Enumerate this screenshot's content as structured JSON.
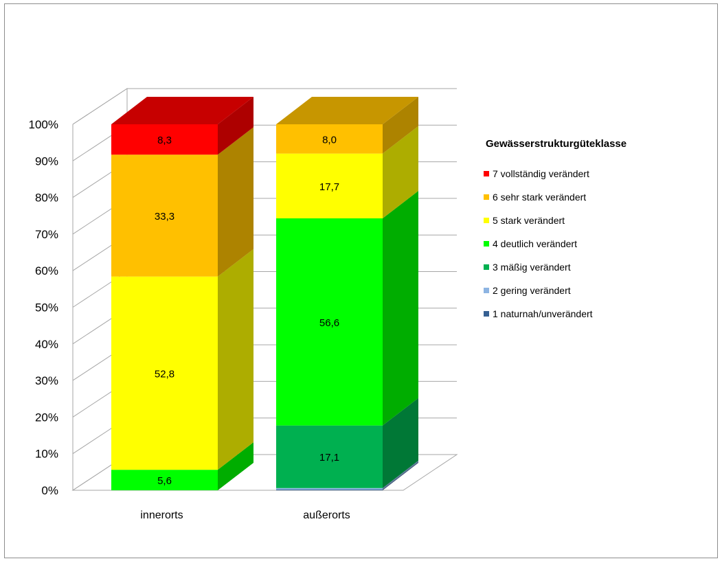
{
  "chart_data": {
    "type": "bar",
    "stacked": true,
    "three_d": true,
    "categories": [
      "innerorts",
      "außerorts"
    ],
    "yticks": [
      "0%",
      "10%",
      "20%",
      "30%",
      "40%",
      "50%",
      "60%",
      "70%",
      "80%",
      "90%",
      "100%"
    ],
    "ylim": [
      0,
      100
    ],
    "grid": true,
    "legend_position": "right",
    "legend": {
      "title": "Gewässerstrukturgüteklasse",
      "entries": [
        {
          "label": "7  vollständig verändert",
          "color": "#ff0000"
        },
        {
          "label": "6  sehr stark verändert",
          "color": "#ffc000"
        },
        {
          "label": "5  stark verändert",
          "color": "#ffff00"
        },
        {
          "label": "4  deutlich verändert",
          "color": "#00ff00"
        },
        {
          "label": "3  mäßig verändert",
          "color": "#00b050"
        },
        {
          "label": "2  gering verändert",
          "color": "#8db4e2"
        },
        {
          "label": "1  naturnah/unverändert",
          "color": "#366092"
        }
      ]
    },
    "series": [
      {
        "class": 1,
        "color": "#366092",
        "values": [
          0,
          0.2
        ],
        "labels": [
          "",
          ""
        ]
      },
      {
        "class": 2,
        "color": "#8db4e2",
        "values": [
          0,
          0.4
        ],
        "labels": [
          "",
          ""
        ]
      },
      {
        "class": 3,
        "color": "#00b050",
        "values": [
          0,
          17.1
        ],
        "labels": [
          "",
          "17,1"
        ]
      },
      {
        "class": 4,
        "color": "#00ff00",
        "values": [
          5.6,
          56.6
        ],
        "labels": [
          "5,6",
          "56,6"
        ]
      },
      {
        "class": 5,
        "color": "#ffff00",
        "values": [
          52.8,
          17.7
        ],
        "labels": [
          "52,8",
          "17,7"
        ]
      },
      {
        "class": 6,
        "color": "#ffc000",
        "values": [
          33.3,
          8.0
        ],
        "labels": [
          "33,3",
          "8,0"
        ]
      },
      {
        "class": 7,
        "color": "#ff0000",
        "values": [
          8.3,
          0
        ],
        "labels": [
          "8,3",
          ""
        ]
      }
    ]
  }
}
